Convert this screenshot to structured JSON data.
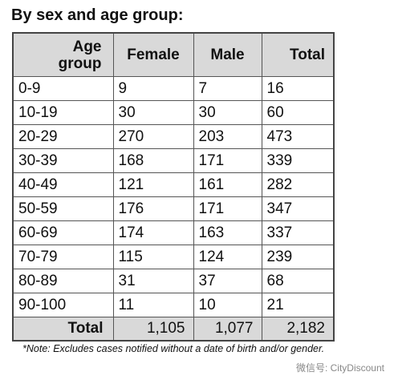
{
  "title": "By sex and age group:",
  "table": {
    "header": [
      "Age group",
      "Female",
      "Male",
      "Total"
    ],
    "rows": [
      [
        "0-9",
        9,
        7,
        16
      ],
      [
        "10-19",
        30,
        30,
        60
      ],
      [
        "20-29",
        270,
        203,
        473
      ],
      [
        "30-39",
        168,
        171,
        339
      ],
      [
        "40-49",
        121,
        161,
        282
      ],
      [
        "50-59",
        176,
        171,
        347
      ],
      [
        "60-69",
        174,
        163,
        337
      ],
      [
        "70-79",
        115,
        124,
        239
      ],
      [
        "80-89",
        31,
        37,
        68
      ],
      [
        "90-100",
        11,
        10,
        21
      ]
    ],
    "total": [
      "Total",
      "1,105",
      "1,077",
      "2,182"
    ]
  },
  "note": "*Note: Excludes cases notified without a date of birth and/or gender.",
  "watermark": "微信号: CityDiscount"
}
